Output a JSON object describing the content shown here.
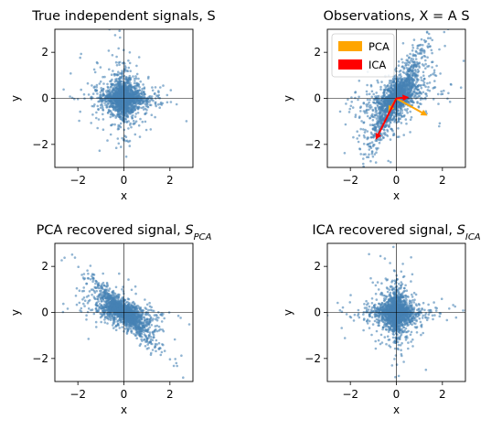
{
  "figure": {
    "background": "#ffffff",
    "point_color": "#4682b4",
    "pca_color": "#ffa500",
    "ica_color": "#ff0000"
  },
  "chart_data": [
    {
      "type": "scatter",
      "title": "True independent signals, S",
      "title_sub": "",
      "xlabel": "x",
      "ylabel": "y",
      "xlim": [
        -3,
        3
      ],
      "ylim": [
        -3,
        3
      ],
      "xticks": [
        -2,
        0,
        2
      ],
      "yticks": [
        -2,
        0,
        2
      ],
      "tick_labels": [
        "−2",
        "0",
        "2"
      ],
      "grid": false,
      "axis_lines_at_zero": true,
      "distribution": {
        "kind": "cross",
        "arms": [
          [
            1,
            0
          ],
          [
            0,
            1
          ]
        ],
        "scale": 0.28,
        "n_points": 2000
      }
    },
    {
      "type": "scatter",
      "title": "Observations, X = A S",
      "title_sub": "",
      "xlabel": "x",
      "ylabel": "y",
      "xlim": [
        -3,
        3
      ],
      "ylim": [
        -3,
        3
      ],
      "xticks": [
        -2,
        0,
        2
      ],
      "yticks": [
        -2,
        0,
        2
      ],
      "tick_labels": [
        "−2",
        "0",
        "2"
      ],
      "grid": false,
      "axis_lines_at_zero": true,
      "legend": {
        "placement": "top-left",
        "entries": [
          "PCA",
          "ICA"
        ]
      },
      "pca_arrows": [
        [
          1.35,
          -0.75
        ],
        [
          -0.35,
          -0.6
        ]
      ],
      "ica_arrows": [
        [
          -0.9,
          -1.8
        ],
        [
          0.55,
          0.05
        ]
      ],
      "distribution": {
        "kind": "cross",
        "arms": [
          [
            1,
            2
          ],
          [
            1,
            0.1
          ]
        ],
        "scale": 0.28,
        "n_points": 2000
      }
    },
    {
      "type": "scatter",
      "title": "PCA recovered signal, ",
      "title_sub": "PCA",
      "xlabel": "x",
      "ylabel": "y",
      "xlim": [
        -3,
        3
      ],
      "ylim": [
        -3,
        3
      ],
      "xticks": [
        -2,
        0,
        2
      ],
      "yticks": [
        -2,
        0,
        2
      ],
      "tick_labels": [
        "−2",
        "0",
        "2"
      ],
      "grid": false,
      "axis_lines_at_zero": true,
      "distribution": {
        "kind": "cross",
        "arms": [
          [
            -1,
            1.1
          ],
          [
            1,
            -0.05
          ]
        ],
        "scale": 0.28,
        "n_points": 2000
      }
    },
    {
      "type": "scatter",
      "title": "ICA recovered signal, ",
      "title_sub": "ICA",
      "xlabel": "x",
      "ylabel": "y",
      "xlim": [
        -3,
        3
      ],
      "ylim": [
        -3,
        3
      ],
      "xticks": [
        -2,
        0,
        2
      ],
      "yticks": [
        -2,
        0,
        2
      ],
      "tick_labels": [
        "−2",
        "0",
        "2"
      ],
      "grid": false,
      "axis_lines_at_zero": true,
      "distribution": {
        "kind": "cross",
        "arms": [
          [
            1,
            0
          ],
          [
            0,
            1
          ]
        ],
        "scale": 0.28,
        "n_points": 2000
      }
    }
  ]
}
